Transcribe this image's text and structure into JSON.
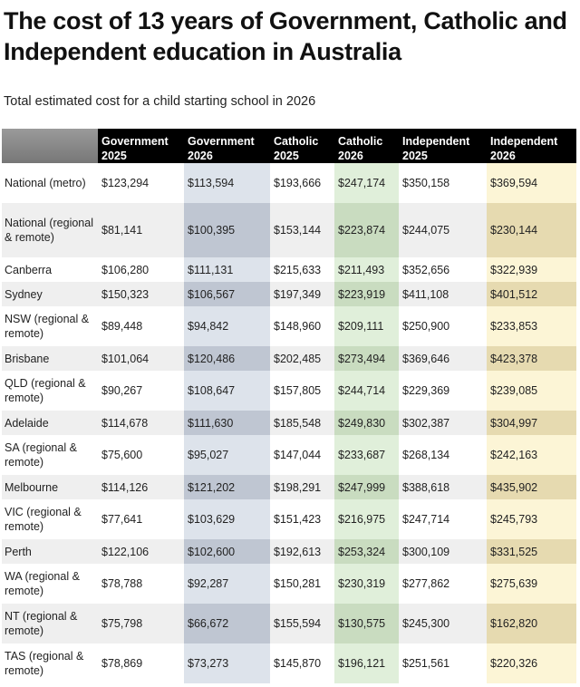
{
  "title": "The cost of 13 years of Government, Catholic and Independent education in Australia",
  "subtitle": "Total estimated cost for a child starting school in 2026",
  "chart_data": {
    "type": "table",
    "columns": [
      {
        "label": "Government 2025"
      },
      {
        "label": "Government 2026"
      },
      {
        "label": "Catholic 2025"
      },
      {
        "label": "Catholic 2026"
      },
      {
        "label": "Independent 2025"
      },
      {
        "label": "Independent 2026"
      }
    ],
    "rows": [
      {
        "label": "National (metro)",
        "values": [
          "$123,294",
          "$113,594",
          "$193,666",
          "$247,174",
          "$350,158",
          "$369,594"
        ]
      },
      {
        "label": "National (regional & remote)",
        "values": [
          "$81,141",
          "$100,395",
          "$153,144",
          "$223,874",
          "$244,075",
          "$230,144"
        ]
      },
      {
        "label": "Canberra",
        "values": [
          "$106,280",
          "$111,131",
          "$215,633",
          "$211,493",
          "$352,656",
          "$322,939"
        ]
      },
      {
        "label": "Sydney",
        "values": [
          "$150,323",
          "$106,567",
          "$197,349",
          "$223,919",
          "$411,108",
          "$401,512"
        ]
      },
      {
        "label": "NSW (regional & remote)",
        "values": [
          "$89,448",
          "$94,842",
          "$148,960",
          "$209,111",
          "$250,900",
          "$233,853"
        ]
      },
      {
        "label": "Brisbane",
        "values": [
          "$101,064",
          "$120,486",
          "$202,485",
          "$273,494",
          "$369,646",
          "$423,378"
        ]
      },
      {
        "label": "QLD (regional & remote)",
        "values": [
          "$90,267",
          "$108,647",
          "$157,805",
          "$244,714",
          "$229,369",
          "$239,085"
        ]
      },
      {
        "label": "Adelaide",
        "values": [
          "$114,678",
          "$111,630",
          "$185,548",
          "$249,830",
          "$302,387",
          "$304,997"
        ]
      },
      {
        "label": "SA (regional & remote)",
        "values": [
          "$75,600",
          "$95,027",
          "$147,044",
          "$233,687",
          "$268,134",
          "$242,163"
        ]
      },
      {
        "label": "Melbourne",
        "values": [
          "$114,126",
          "$121,202",
          "$198,291",
          "$247,999",
          "$388,618",
          "$435,902"
        ]
      },
      {
        "label": "VIC (regional & remote)",
        "values": [
          "$77,641",
          "$103,629",
          "$151,423",
          "$216,975",
          "$247,714",
          "$245,793"
        ]
      },
      {
        "label": "Perth",
        "values": [
          "$122,106",
          "$102,600",
          "$192,613",
          "$253,324",
          "$300,109",
          "$331,525"
        ]
      },
      {
        "label": "WA (regional & remote)",
        "values": [
          "$78,788",
          "$92,287",
          "$150,281",
          "$230,319",
          "$277,862",
          "$275,639"
        ]
      },
      {
        "label": "NT (regional & remote)",
        "values": [
          "$75,798",
          "$66,672",
          "$155,594",
          "$130,575",
          "$245,300",
          "$162,820"
        ]
      },
      {
        "label": "TAS (regional & remote)",
        "values": [
          "$78,869",
          "$73,273",
          "$145,870",
          "$196,121",
          "$251,561",
          "$220,326"
        ]
      }
    ]
  }
}
